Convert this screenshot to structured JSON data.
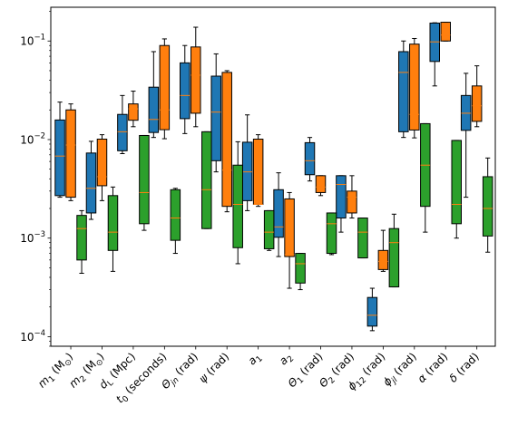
{
  "chart_data": {
    "type": "box",
    "y_scale": "log",
    "ylim": [
      8e-05,
      0.22
    ],
    "y_ticks": [
      {
        "value": 0.0001,
        "base": "10",
        "exp": "−4"
      },
      {
        "value": 0.001,
        "base": "10",
        "exp": "−3"
      },
      {
        "value": 0.01,
        "base": "10",
        "exp": "−2"
      },
      {
        "value": 0.1,
        "base": "10",
        "exp": "−1"
      }
    ],
    "grid": false,
    "legend": "none",
    "categories": [
      {
        "parts": [
          {
            "t": "m",
            "i": true
          },
          {
            "t": "1",
            "sub": true
          },
          {
            "t": " (M"
          },
          {
            "t": "⊙",
            "sub": true
          },
          {
            "t": ")"
          }
        ]
      },
      {
        "parts": [
          {
            "t": "m",
            "i": true
          },
          {
            "t": "2",
            "sub": true
          },
          {
            "t": " (M"
          },
          {
            "t": "⊙",
            "sub": true
          },
          {
            "t": ")"
          }
        ]
      },
      {
        "parts": [
          {
            "t": "d",
            "i": true
          },
          {
            "t": "L",
            "sub": true
          },
          {
            "t": " (Mpc)"
          }
        ]
      },
      {
        "parts": [
          {
            "t": "t",
            "i": true
          },
          {
            "t": "0",
            "sub": true
          },
          {
            "t": " (seconds)"
          }
        ]
      },
      {
        "parts": [
          {
            "t": "Θ",
            "i": true
          },
          {
            "t": "jn",
            "sub": true,
            "i": true
          },
          {
            "t": " (rad)"
          }
        ]
      },
      {
        "parts": [
          {
            "t": "ψ",
            "i": true
          },
          {
            "t": " (rad)"
          }
        ]
      },
      {
        "parts": [
          {
            "t": "a",
            "i": true
          },
          {
            "t": "1",
            "sub": true
          }
        ]
      },
      {
        "parts": [
          {
            "t": "a",
            "i": true
          },
          {
            "t": "2",
            "sub": true
          }
        ]
      },
      {
        "parts": [
          {
            "t": "Θ",
            "i": true
          },
          {
            "t": "1",
            "sub": true
          },
          {
            "t": " (rad)"
          }
        ]
      },
      {
        "parts": [
          {
            "t": "Θ",
            "i": true
          },
          {
            "t": "2",
            "sub": true
          },
          {
            "t": " (rad)"
          }
        ]
      },
      {
        "parts": [
          {
            "t": "ϕ",
            "i": true
          },
          {
            "t": "12",
            "sub": true
          },
          {
            "t": " (rad)"
          }
        ]
      },
      {
        "parts": [
          {
            "t": "ϕ",
            "i": true
          },
          {
            "t": "jl",
            "sub": true,
            "i": true
          },
          {
            "t": " (rad)"
          }
        ]
      },
      {
        "parts": [
          {
            "t": "α",
            "i": true
          },
          {
            "t": " (rad)"
          }
        ]
      },
      {
        "parts": [
          {
            "t": "δ",
            "i": true
          },
          {
            "t": " (rad)"
          }
        ]
      }
    ],
    "series": [
      {
        "color": "#1f77b4",
        "boxes": [
          {
            "whislo": 0.0026,
            "q1": 0.0027,
            "med": 0.0068,
            "q3": 0.0158,
            "whishi": 0.024
          },
          {
            "whislo": 0.00155,
            "q1": 0.0018,
            "med": 0.0032,
            "q3": 0.0073,
            "whishi": 0.0096
          },
          {
            "whislo": 0.0072,
            "q1": 0.0077,
            "med": 0.012,
            "q3": 0.018,
            "whishi": 0.028
          },
          {
            "whislo": 0.0105,
            "q1": 0.0118,
            "med": 0.016,
            "q3": 0.034,
            "whishi": 0.078
          },
          {
            "whislo": 0.0115,
            "q1": 0.0163,
            "med": 0.028,
            "q3": 0.06,
            "whishi": 0.09
          },
          {
            "whislo": 0.0047,
            "q1": 0.0061,
            "med": 0.019,
            "q3": 0.044,
            "whishi": 0.074
          },
          {
            "whislo": 0.0019,
            "q1": 0.0024,
            "med": 0.0047,
            "q3": 0.0094,
            "whishi": 0.0178
          },
          {
            "whislo": 0.00065,
            "q1": 0.00102,
            "med": 0.0013,
            "q3": 0.0031,
            "whishi": 0.0046
          },
          {
            "whislo": 0.0038,
            "q1": 0.0044,
            "med": 0.0061,
            "q3": 0.0093,
            "whishi": 0.0105
          },
          {
            "whislo": 0.00115,
            "q1": 0.0016,
            "med": 0.0035,
            "q3": 0.0043,
            "whishi": 0.0043
          },
          {
            "whislo": 0.000115,
            "q1": 0.000128,
            "med": 0.000165,
            "q3": 0.00025,
            "whishi": 0.00031
          },
          {
            "whislo": 0.0105,
            "q1": 0.012,
            "med": 0.048,
            "q3": 0.078,
            "whishi": 0.1
          },
          {
            "whislo": 0.035,
            "q1": 0.062,
            "med": 0.098,
            "q3": 0.152,
            "whishi": 0.153
          },
          {
            "whislo": 0.0026,
            "q1": 0.0124,
            "med": 0.0185,
            "q3": 0.028,
            "whishi": 0.047
          }
        ]
      },
      {
        "color": "#ff7f0e",
        "boxes": [
          {
            "whislo": 0.0024,
            "q1": 0.0026,
            "med": 0.0088,
            "q3": 0.02,
            "whishi": 0.023
          },
          {
            "whislo": 0.0024,
            "q1": 0.0034,
            "med": 0.0042,
            "q3": 0.0101,
            "whishi": 0.0112
          },
          {
            "whislo": 0.0135,
            "q1": 0.0157,
            "med": 0.0205,
            "q3": 0.023,
            "whishi": 0.031
          },
          {
            "whislo": 0.0102,
            "q1": 0.0126,
            "med": 0.02,
            "q3": 0.09,
            "whishi": 0.105
          },
          {
            "whislo": 0.0135,
            "q1": 0.0185,
            "med": 0.045,
            "q3": 0.087,
            "whishi": 0.138
          },
          {
            "whislo": 0.00185,
            "q1": 0.0021,
            "med": 0.0049,
            "q3": 0.048,
            "whishi": 0.05
          },
          {
            "whislo": 0.0021,
            "q1": 0.0022,
            "med": 0.0022,
            "q3": 0.0101,
            "whishi": 0.0112
          },
          {
            "whislo": 0.00031,
            "q1": 0.00065,
            "med": 0.00068,
            "q3": 0.0025,
            "whishi": 0.0029
          },
          {
            "whislo": 0.0027,
            "q1": 0.0029,
            "med": 0.0033,
            "q3": 0.0043,
            "whishi": 0.0043
          },
          {
            "whislo": 0.0016,
            "q1": 0.0018,
            "med": 0.0026,
            "q3": 0.003,
            "whishi": 0.0043
          },
          {
            "whislo": 0.00046,
            "q1": 0.00048,
            "med": 0.00058,
            "q3": 0.00075,
            "whishi": 0.0012
          },
          {
            "whislo": 0.0104,
            "q1": 0.0125,
            "med": 0.018,
            "q3": 0.093,
            "whishi": 0.106
          },
          {
            "whislo": 0.1,
            "q1": 0.1,
            "med": 0.115,
            "q3": 0.155,
            "whishi": 0.155
          },
          {
            "whislo": 0.0135,
            "q1": 0.0153,
            "med": 0.022,
            "q3": 0.035,
            "whishi": 0.056
          }
        ]
      },
      {
        "color": "#2ca02c",
        "boxes": [
          {
            "whislo": 0.00044,
            "q1": 0.0006,
            "med": 0.00125,
            "q3": 0.0017,
            "whishi": 0.0019
          },
          {
            "whislo": 0.00046,
            "q1": 0.00075,
            "med": 0.00115,
            "q3": 0.0027,
            "whishi": 0.0033
          },
          {
            "whislo": 0.0012,
            "q1": 0.0014,
            "med": 0.0029,
            "q3": 0.011,
            "whishi": 0.011
          },
          {
            "whislo": 0.0007,
            "q1": 0.00095,
            "med": 0.0016,
            "q3": 0.0031,
            "whishi": 0.0032
          },
          {
            "whislo": 0.00125,
            "q1": 0.00125,
            "med": 0.0031,
            "q3": 0.012,
            "whishi": 0.012
          },
          {
            "whislo": 0.00055,
            "q1": 0.0008,
            "med": 0.0022,
            "q3": 0.0055,
            "whishi": 0.0095
          },
          {
            "whislo": 0.00075,
            "q1": 0.00078,
            "med": 0.00115,
            "q3": 0.0019,
            "whishi": 0.0019
          },
          {
            "whislo": 0.0003,
            "q1": 0.00035,
            "med": 0.00055,
            "q3": 0.0007,
            "whishi": 0.0007
          },
          {
            "whislo": 0.00068,
            "q1": 0.0007,
            "med": 0.0014,
            "q3": 0.0018,
            "whishi": 0.0018
          },
          {
            "whislo": 0.00063,
            "q1": 0.00063,
            "med": 0.00115,
            "q3": 0.0016,
            "whishi": 0.0016
          },
          {
            "whislo": 0.00032,
            "q1": 0.00032,
            "med": 0.0009,
            "q3": 0.00125,
            "whishi": 0.00175
          },
          {
            "whislo": 0.00115,
            "q1": 0.0021,
            "med": 0.0055,
            "q3": 0.0145,
            "whishi": 0.0145
          },
          {
            "whislo": 0.001,
            "q1": 0.0014,
            "med": 0.0022,
            "q3": 0.0098,
            "whishi": 0.0098
          },
          {
            "whislo": 0.00072,
            "q1": 0.00105,
            "med": 0.002,
            "q3": 0.0042,
            "whishi": 0.0065
          }
        ]
      }
    ]
  }
}
